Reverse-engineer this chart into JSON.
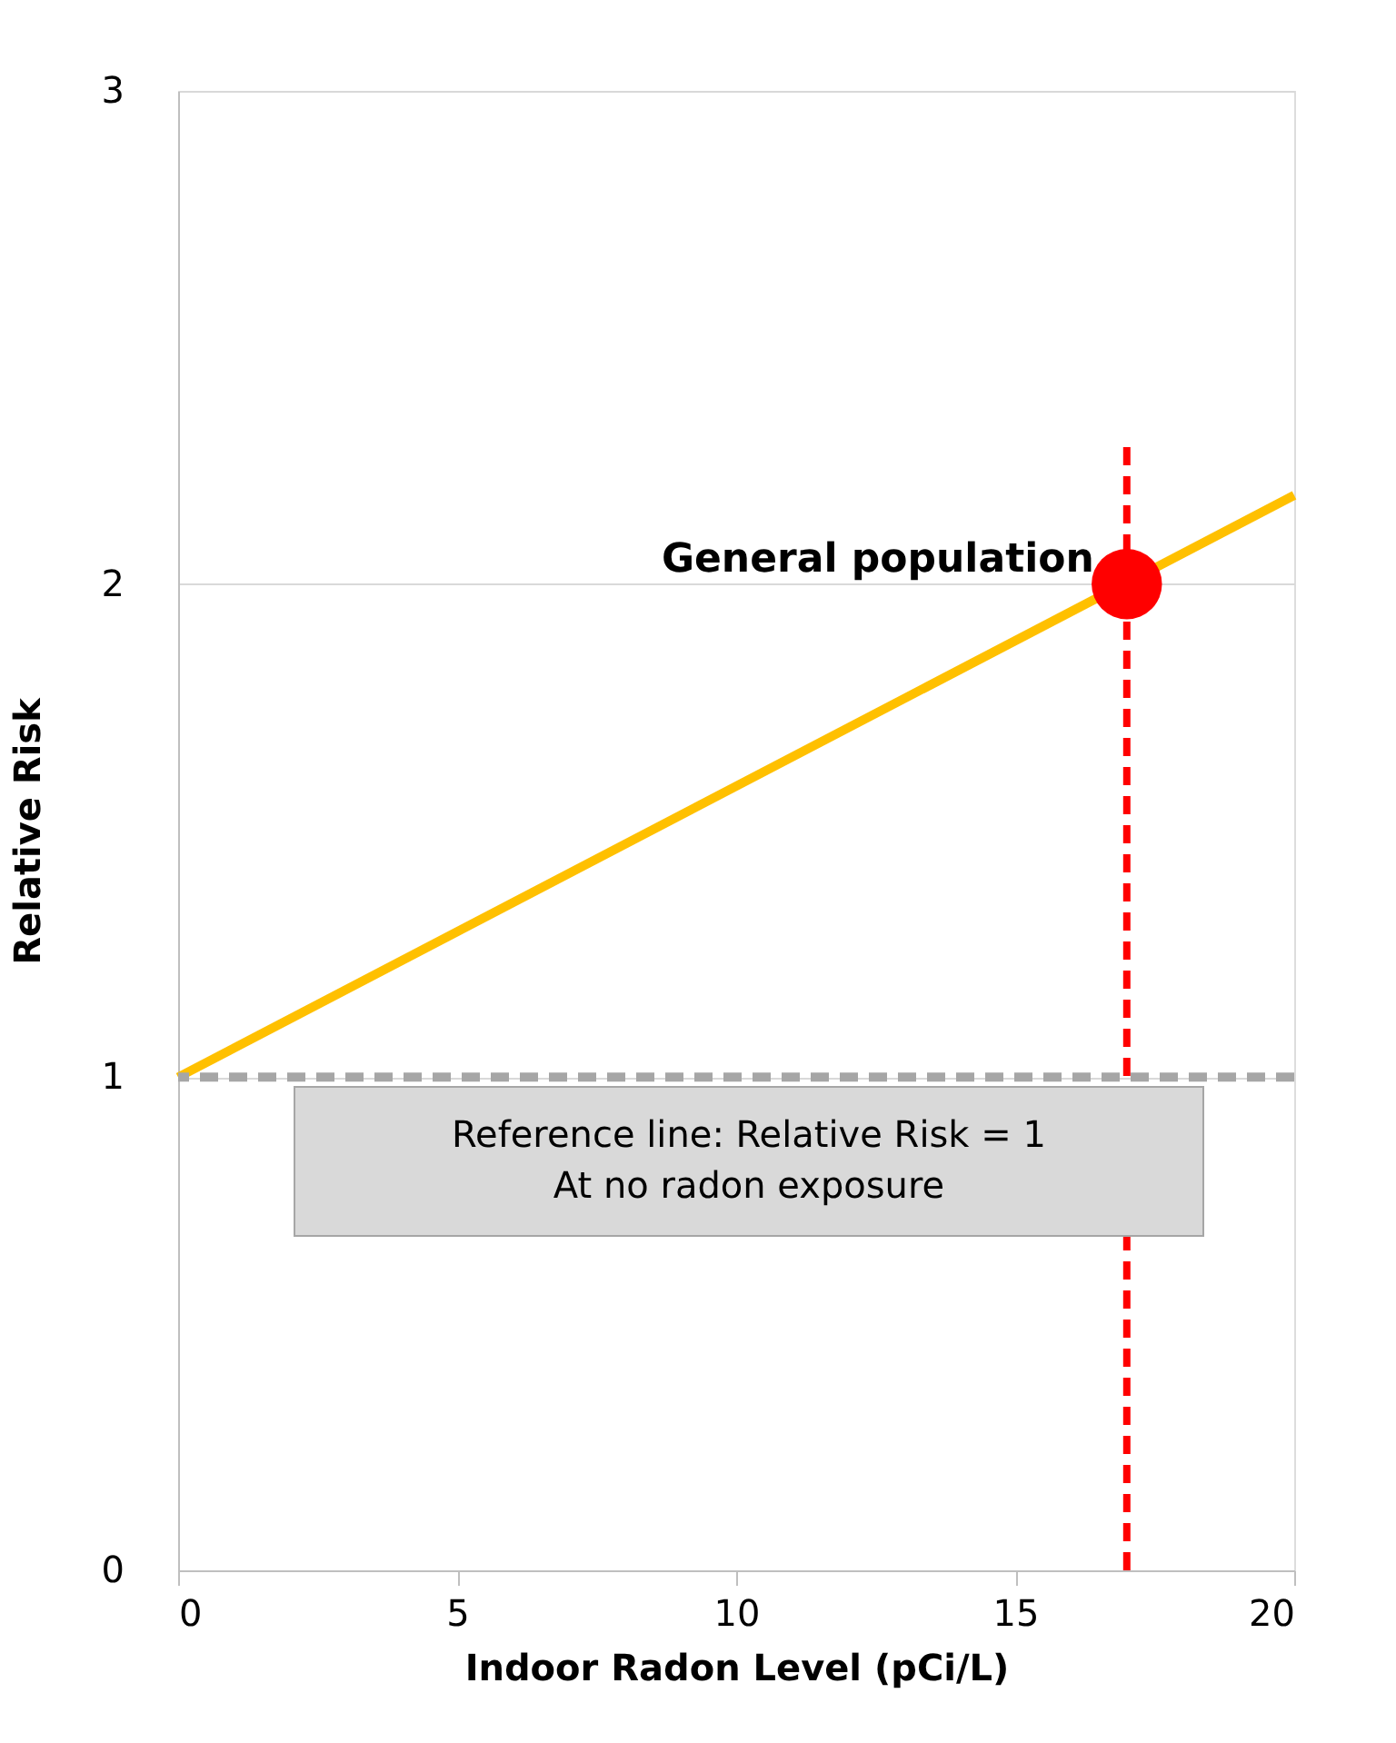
{
  "chart_data": {
    "type": "line",
    "xlabel": "Indoor Radon Level (pCi/L)",
    "ylabel": "Relative Risk",
    "xlim": [
      0,
      20
    ],
    "xticks": [
      0,
      5,
      10,
      15,
      20
    ],
    "ylim": [
      0,
      3
    ],
    "yticks": [
      0,
      1,
      2,
      3
    ],
    "grid": "y",
    "series": [
      {
        "color": "#ffc000",
        "x": [
          0,
          20
        ],
        "values": [
          1,
          2.18
        ],
        "line_style": "solid"
      },
      {
        "type": "line",
        "color": "#ff0000",
        "x": [
          17,
          17
        ],
        "values": [
          0,
          2.28
        ],
        "line_style": "dashed"
      },
      {
        "type": "scatter",
        "color": "#ff0000",
        "x": [
          17
        ],
        "values": [
          2
        ],
        "marker": "circle"
      }
    ],
    "ref_lines": [
      {
        "axis": "y",
        "value": 1,
        "label": "Reference line: Relative Risk = 1\nAt no radon exposure",
        "color": "#a6a6a6",
        "line_style": "dashed"
      }
    ],
    "annotations": [
      {
        "text": "General population",
        "x": 17,
        "y": 2
      }
    ]
  }
}
